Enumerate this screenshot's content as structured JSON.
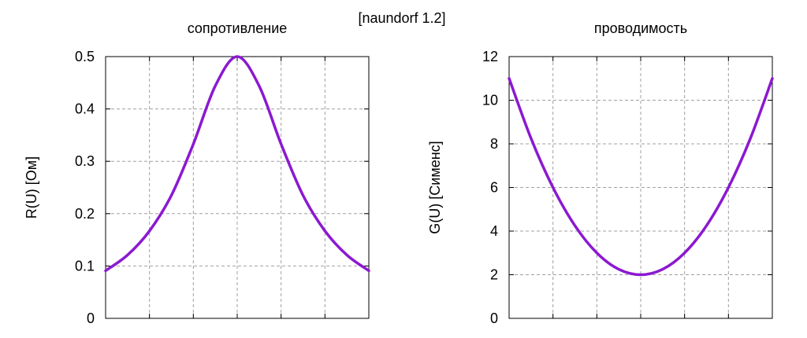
{
  "header": {
    "title": "[naundorf 1.2]"
  },
  "chart_data": [
    {
      "type": "line",
      "title": "сопротивление",
      "xlabel": "",
      "ylabel": "R(U) [Ом]",
      "xlim": [
        -3,
        3
      ],
      "ylim": [
        0,
        0.5
      ],
      "yticks": [
        0,
        0.1,
        0.2,
        0.3,
        0.4,
        0.5
      ],
      "ytick_labels": [
        "0",
        "0.1",
        "0.2",
        "0.3",
        "0.4",
        "0.5"
      ],
      "xticks": [
        -3,
        -2,
        -1,
        0,
        1,
        2,
        3
      ],
      "xtick_labels": [],
      "grid": true,
      "series": [
        {
          "color": "#8b19d1",
          "x": [
            -3,
            -2.5,
            -2,
            -1.5,
            -1,
            -0.5,
            0,
            0.5,
            1,
            1.5,
            2,
            2.5,
            3
          ],
          "y": [
            0.091,
            0.121,
            0.167,
            0.235,
            0.333,
            0.444,
            0.5,
            0.444,
            0.333,
            0.235,
            0.167,
            0.121,
            0.091
          ]
        }
      ]
    },
    {
      "type": "line",
      "title": "проводимость",
      "xlabel": "",
      "ylabel": "G(U) [Сименс]",
      "xlim": [
        -3,
        3
      ],
      "ylim": [
        0,
        12
      ],
      "yticks": [
        0,
        2,
        4,
        6,
        8,
        10,
        12
      ],
      "ytick_labels": [
        "0",
        "2",
        "4",
        "6",
        "8",
        "10",
        "12"
      ],
      "xticks": [
        -3,
        -2,
        -1,
        0,
        1,
        2,
        3
      ],
      "xtick_labels": [],
      "grid": true,
      "series": [
        {
          "color": "#8b19d1",
          "x": [
            -3,
            -2.5,
            -2,
            -1.5,
            -1,
            -0.5,
            0,
            0.5,
            1,
            1.5,
            2,
            2.5,
            3
          ],
          "y": [
            11,
            8.25,
            6,
            4.25,
            3,
            2.25,
            2,
            2.25,
            3,
            4.25,
            6,
            8.25,
            11
          ]
        }
      ]
    }
  ]
}
